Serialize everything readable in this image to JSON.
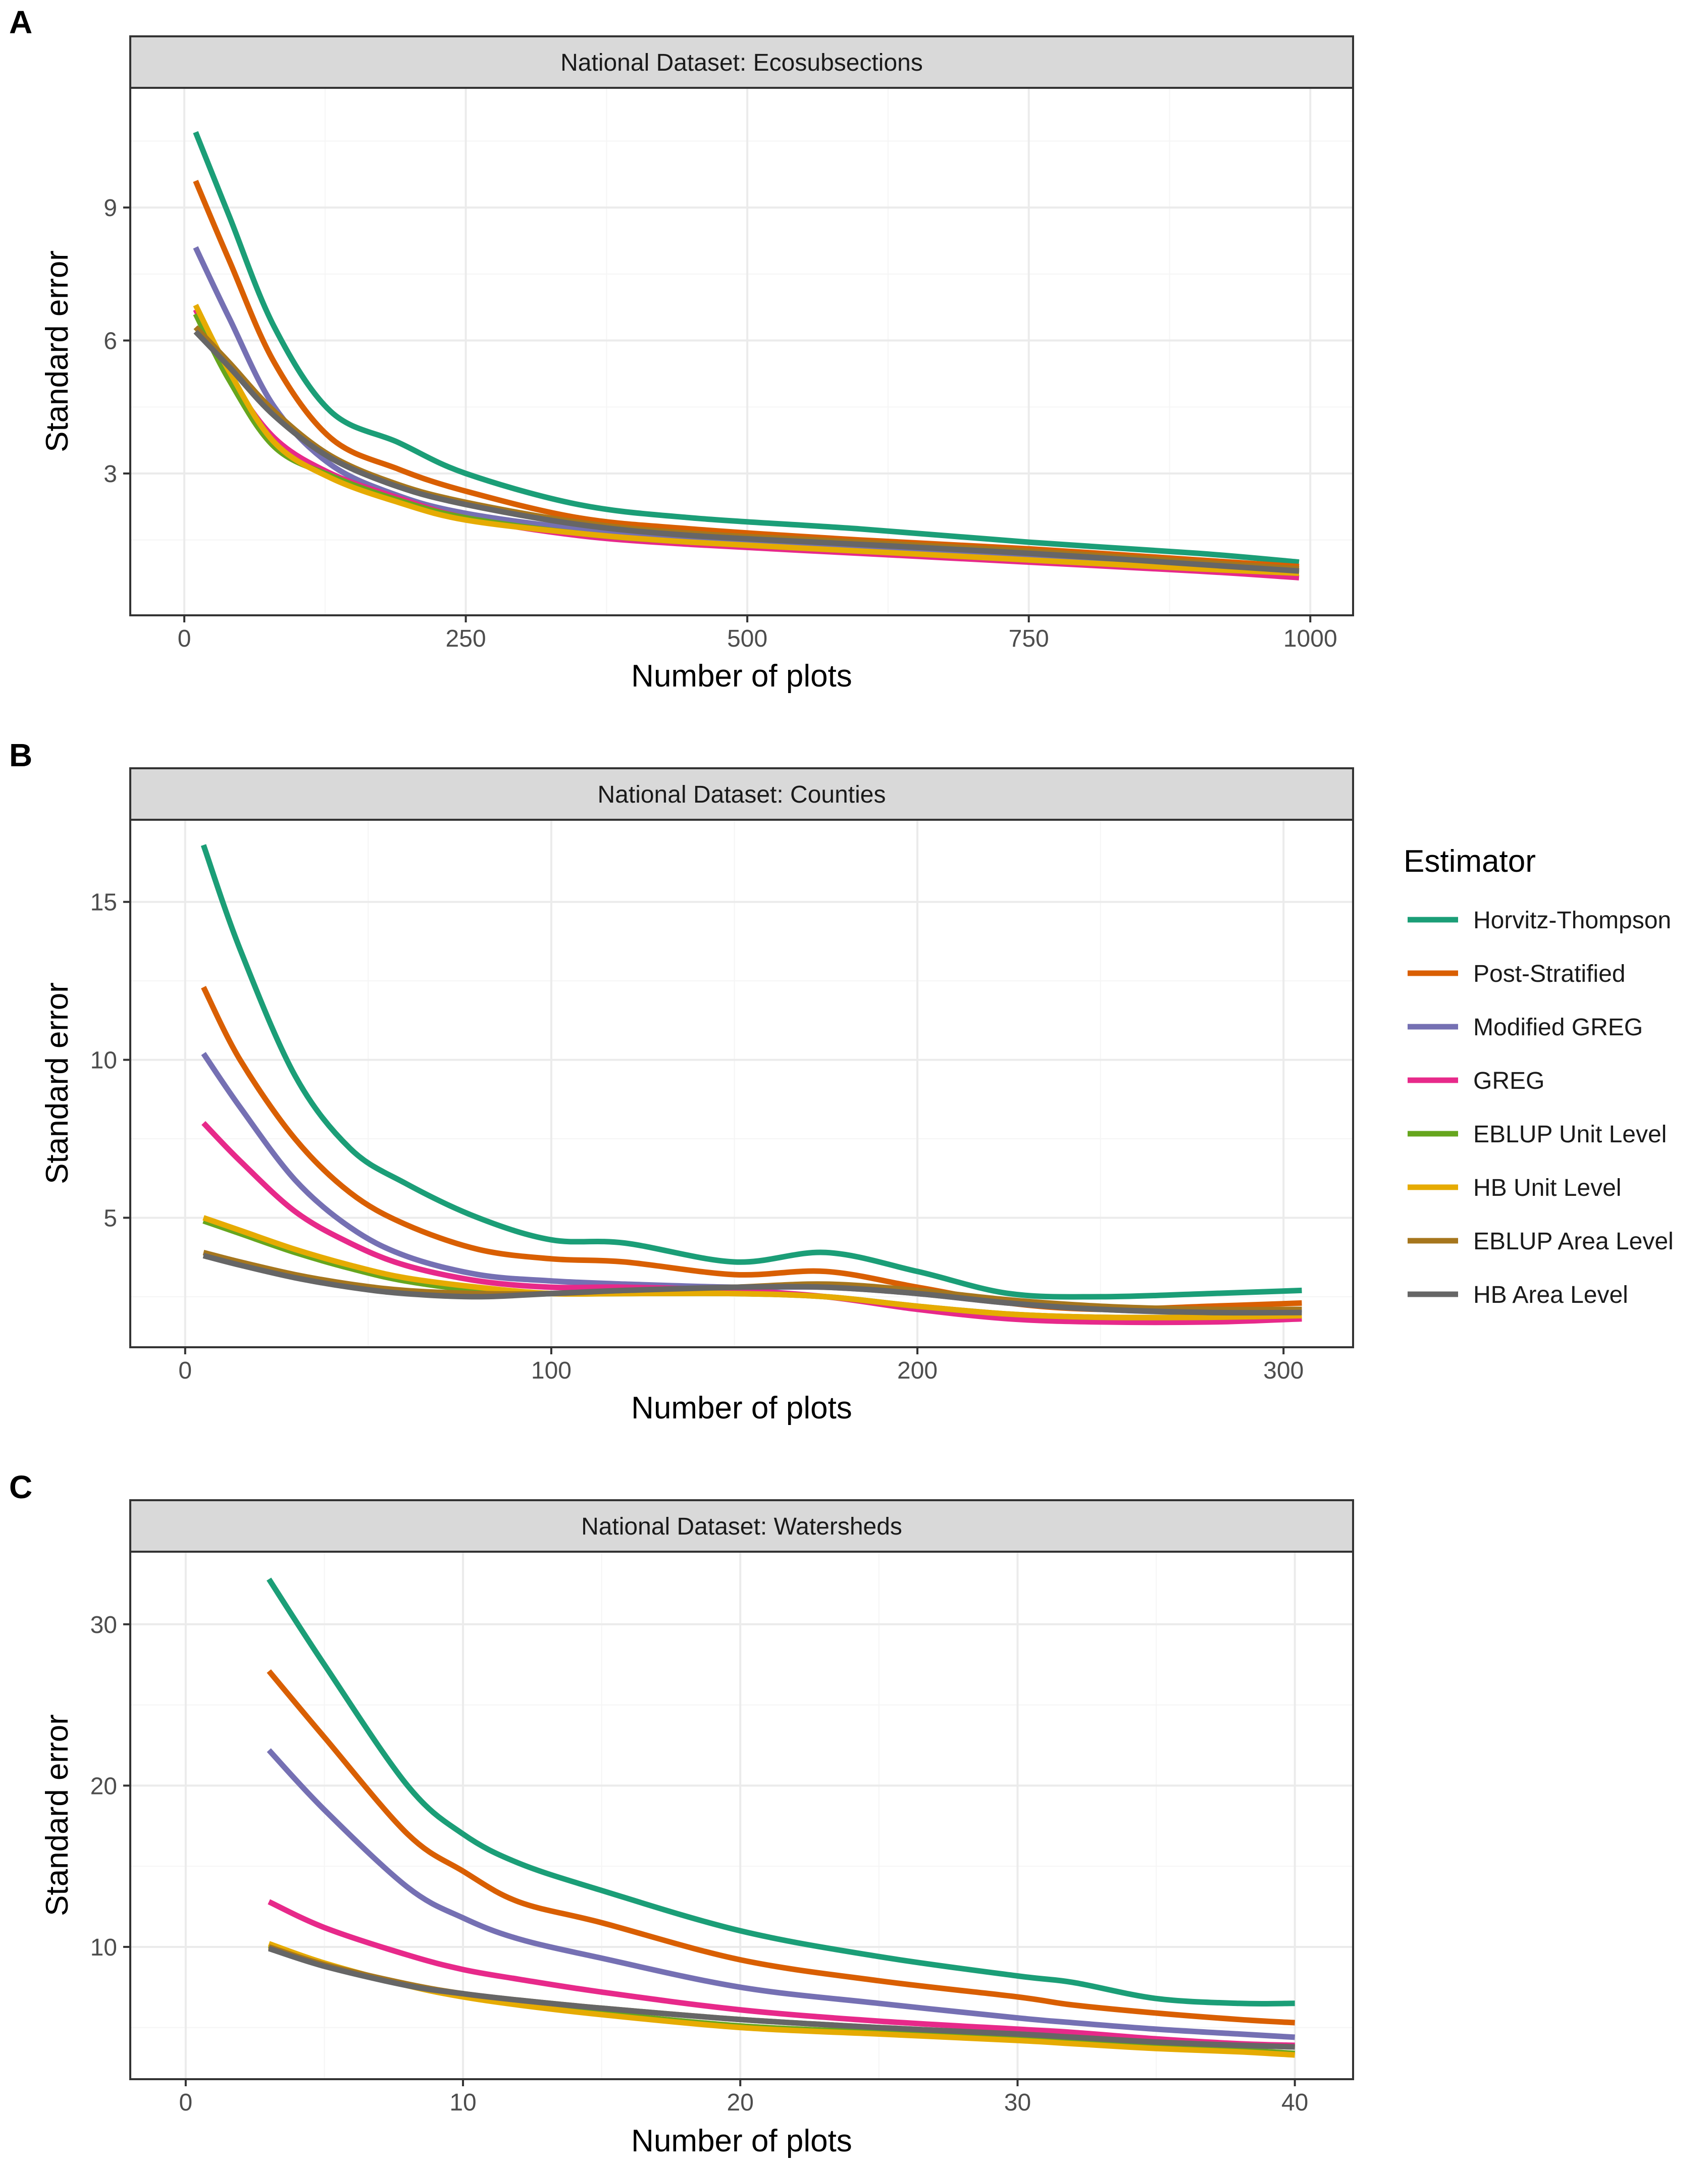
{
  "chart_data": [
    {
      "type": "line",
      "panel": "A",
      "title": "National Dataset: Ecosubsections",
      "xlabel": "Number of plots",
      "ylabel": "Standard error",
      "xlim": [
        -48,
        1038
      ],
      "ylim": [
        -0.2,
        11.7
      ],
      "xticks": [
        0,
        250,
        500,
        750,
        1000
      ],
      "yticks": [
        3,
        6,
        9
      ],
      "xminor": [
        125,
        375,
        625,
        875
      ],
      "yminor": [
        1.5,
        4.5,
        7.5,
        10.5
      ],
      "grid": true,
      "series": [
        {
          "name": "Horvitz-Thompson",
          "x": [
            10,
            40,
            80,
            130,
            190,
            250,
            350,
            450,
            600,
            750,
            900,
            990
          ],
          "values": [
            10.7,
            8.8,
            6.3,
            4.4,
            3.7,
            3.0,
            2.3,
            2.0,
            1.75,
            1.45,
            1.2,
            1.0
          ]
        },
        {
          "name": "Post-Stratified",
          "x": [
            10,
            40,
            80,
            130,
            190,
            250,
            350,
            450,
            600,
            750,
            900,
            990
          ],
          "values": [
            9.6,
            7.8,
            5.5,
            3.8,
            3.1,
            2.6,
            2.0,
            1.75,
            1.5,
            1.3,
            1.05,
            0.9
          ]
        },
        {
          "name": "Modified GREG",
          "x": [
            10,
            40,
            80,
            130,
            190,
            250,
            350,
            450,
            600,
            750,
            900,
            990
          ],
          "values": [
            8.1,
            6.5,
            4.5,
            3.2,
            2.5,
            2.1,
            1.75,
            1.55,
            1.35,
            1.15,
            0.95,
            0.8
          ]
        },
        {
          "name": "GREG",
          "x": [
            10,
            40,
            80,
            130,
            190,
            250,
            350,
            450,
            600,
            750,
            900,
            990
          ],
          "values": [
            6.7,
            5.2,
            3.8,
            3.0,
            2.45,
            2.0,
            1.6,
            1.4,
            1.2,
            1.0,
            0.8,
            0.65
          ]
        },
        {
          "name": "EBLUP Unit Level",
          "x": [
            10,
            40,
            80,
            130,
            190,
            250,
            350,
            450,
            600,
            750,
            900,
            990
          ],
          "values": [
            6.6,
            5.1,
            3.6,
            2.95,
            2.4,
            2.0,
            1.65,
            1.45,
            1.25,
            1.05,
            0.85,
            0.75
          ]
        },
        {
          "name": "HB Unit Level",
          "x": [
            10,
            40,
            80,
            130,
            190,
            250,
            350,
            450,
            600,
            750,
            900,
            990
          ],
          "values": [
            6.8,
            5.3,
            3.7,
            2.9,
            2.35,
            1.95,
            1.65,
            1.45,
            1.25,
            1.05,
            0.85,
            0.75
          ]
        },
        {
          "name": "EBLUP Area Level",
          "x": [
            10,
            40,
            80,
            130,
            190,
            250,
            350,
            450,
            600,
            750,
            900,
            990
          ],
          "values": [
            6.3,
            5.5,
            4.4,
            3.4,
            2.75,
            2.35,
            1.9,
            1.65,
            1.45,
            1.25,
            1.0,
            0.85
          ]
        },
        {
          "name": "HB Area Level",
          "x": [
            10,
            40,
            80,
            130,
            190,
            250,
            350,
            450,
            600,
            750,
            900,
            990
          ],
          "values": [
            6.2,
            5.4,
            4.3,
            3.35,
            2.7,
            2.3,
            1.85,
            1.6,
            1.4,
            1.2,
            0.95,
            0.8
          ]
        }
      ]
    },
    {
      "type": "line",
      "panel": "B",
      "title": "National Dataset: Counties",
      "xlabel": "Number of plots",
      "ylabel": "Standard error",
      "xlim": [
        -15,
        319
      ],
      "ylim": [
        0.9,
        17.6
      ],
      "xticks": [
        0,
        100,
        200,
        300
      ],
      "yticks": [
        5,
        10,
        15
      ],
      "xminor": [
        50,
        150,
        250
      ],
      "yminor": [
        2.5,
        7.5,
        12.5
      ],
      "grid": true,
      "series": [
        {
          "name": "Horvitz-Thompson",
          "x": [
            5,
            15,
            30,
            45,
            60,
            80,
            100,
            120,
            150,
            175,
            200,
            225,
            250,
            280,
            305
          ],
          "values": [
            16.8,
            13.5,
            9.5,
            7.2,
            6.1,
            5.0,
            4.3,
            4.2,
            3.6,
            3.9,
            3.3,
            2.6,
            2.5,
            2.6,
            2.7
          ]
        },
        {
          "name": "Post-Stratified",
          "x": [
            5,
            15,
            30,
            45,
            60,
            80,
            100,
            120,
            150,
            175,
            200,
            225,
            250,
            280,
            305
          ],
          "values": [
            12.3,
            10.0,
            7.5,
            5.8,
            4.8,
            4.0,
            3.7,
            3.6,
            3.2,
            3.3,
            2.8,
            2.3,
            2.1,
            2.2,
            2.3
          ]
        },
        {
          "name": "Modified GREG",
          "x": [
            5,
            15,
            30,
            45,
            60,
            80,
            100,
            120,
            150,
            175,
            200,
            225,
            250,
            280,
            305
          ],
          "values": [
            10.2,
            8.5,
            6.2,
            4.7,
            3.8,
            3.2,
            3.0,
            2.9,
            2.8,
            2.8,
            2.6,
            2.3,
            2.1,
            2.0,
            2.1
          ]
        },
        {
          "name": "GREG",
          "x": [
            5,
            15,
            30,
            45,
            60,
            80,
            100,
            120,
            150,
            175,
            200,
            225,
            250,
            280,
            305
          ],
          "values": [
            8.0,
            6.8,
            5.2,
            4.2,
            3.5,
            3.0,
            2.8,
            2.8,
            2.7,
            2.5,
            2.1,
            1.8,
            1.7,
            1.7,
            1.8
          ]
        },
        {
          "name": "EBLUP Unit Level",
          "x": [
            5,
            15,
            30,
            45,
            60,
            80,
            100,
            120,
            150,
            175,
            200,
            225,
            250,
            280,
            305
          ],
          "values": [
            4.9,
            4.5,
            3.9,
            3.4,
            3.0,
            2.7,
            2.6,
            2.6,
            2.6,
            2.5,
            2.2,
            1.95,
            1.85,
            1.85,
            1.9
          ]
        },
        {
          "name": "HB Unit Level",
          "x": [
            5,
            15,
            30,
            45,
            60,
            80,
            100,
            120,
            150,
            175,
            200,
            225,
            250,
            280,
            305
          ],
          "values": [
            5.0,
            4.6,
            4.0,
            3.5,
            3.1,
            2.8,
            2.6,
            2.6,
            2.6,
            2.5,
            2.2,
            1.95,
            1.85,
            1.85,
            1.9
          ]
        },
        {
          "name": "EBLUP Area Level",
          "x": [
            5,
            15,
            30,
            45,
            60,
            80,
            100,
            120,
            150,
            175,
            200,
            225,
            250,
            280,
            305
          ],
          "values": [
            3.9,
            3.6,
            3.2,
            2.9,
            2.7,
            2.6,
            2.6,
            2.7,
            2.8,
            2.9,
            2.7,
            2.4,
            2.2,
            2.1,
            2.1
          ]
        },
        {
          "name": "HB Area Level",
          "x": [
            5,
            15,
            30,
            45,
            60,
            80,
            100,
            120,
            150,
            175,
            200,
            225,
            250,
            280,
            305
          ],
          "values": [
            3.8,
            3.5,
            3.1,
            2.8,
            2.6,
            2.5,
            2.6,
            2.7,
            2.8,
            2.8,
            2.6,
            2.3,
            2.1,
            2.0,
            2.0
          ]
        }
      ]
    },
    {
      "type": "line",
      "panel": "C",
      "title": "National Dataset: Watersheds",
      "xlabel": "Number of plots",
      "ylabel": "Standard error",
      "xlim": [
        -2,
        42.1
      ],
      "ylim": [
        1.8,
        34.5
      ],
      "xticks": [
        0,
        10,
        20,
        30,
        40
      ],
      "yticks": [
        10,
        20,
        30
      ],
      "xminor": [
        5,
        15,
        25,
        35
      ],
      "yminor": [
        5,
        15,
        25
      ],
      "grid": true,
      "series": [
        {
          "name": "Horvitz-Thompson",
          "x": [
            3,
            5,
            8,
            10,
            12,
            15,
            20,
            25,
            30,
            32,
            35,
            38,
            40
          ],
          "values": [
            32.8,
            27.5,
            20.0,
            17.0,
            15.2,
            13.5,
            11.0,
            9.4,
            8.2,
            7.8,
            6.8,
            6.5,
            6.5
          ]
        },
        {
          "name": "Post-Stratified",
          "x": [
            3,
            5,
            8,
            10,
            12,
            15,
            20,
            25,
            30,
            32,
            35,
            38,
            40
          ],
          "values": [
            27.1,
            23.0,
            17.0,
            14.7,
            12.8,
            11.5,
            9.2,
            7.9,
            6.9,
            6.4,
            5.9,
            5.5,
            5.3
          ]
        },
        {
          "name": "Modified GREG",
          "x": [
            3,
            5,
            8,
            10,
            12,
            15,
            20,
            25,
            30,
            32,
            35,
            38,
            40
          ],
          "values": [
            22.2,
            18.5,
            13.7,
            11.8,
            10.5,
            9.3,
            7.5,
            6.5,
            5.6,
            5.3,
            4.9,
            4.6,
            4.4
          ]
        },
        {
          "name": "GREG",
          "x": [
            3,
            5,
            8,
            10,
            12,
            15,
            20,
            25,
            30,
            32,
            35,
            38,
            40
          ],
          "values": [
            12.8,
            11.2,
            9.5,
            8.6,
            8.0,
            7.2,
            6.1,
            5.4,
            4.9,
            4.7,
            4.3,
            4.0,
            3.9
          ]
        },
        {
          "name": "EBLUP Unit Level",
          "x": [
            3,
            5,
            8,
            10,
            12,
            15,
            20,
            25,
            30,
            32,
            35,
            38,
            40
          ],
          "values": [
            10.1,
            8.9,
            7.6,
            7.0,
            6.5,
            5.9,
            5.1,
            4.7,
            4.3,
            4.1,
            3.8,
            3.6,
            3.4
          ]
        },
        {
          "name": "HB Unit Level",
          "x": [
            3,
            5,
            8,
            10,
            12,
            15,
            20,
            25,
            30,
            32,
            35,
            38,
            40
          ],
          "values": [
            10.2,
            9.0,
            7.6,
            6.9,
            6.4,
            5.8,
            5.0,
            4.6,
            4.2,
            4.0,
            3.7,
            3.5,
            3.3
          ]
        },
        {
          "name": "EBLUP Area Level",
          "x": [
            3,
            5,
            8,
            10,
            12,
            15,
            20,
            25,
            30,
            32,
            35,
            38,
            40
          ],
          "values": [
            10.0,
            8.9,
            7.7,
            7.1,
            6.7,
            6.2,
            5.5,
            5.0,
            4.6,
            4.4,
            4.1,
            3.9,
            3.8
          ]
        },
        {
          "name": "HB Area Level",
          "x": [
            3,
            5,
            8,
            10,
            12,
            15,
            20,
            25,
            30,
            32,
            35,
            38,
            40
          ],
          "values": [
            9.9,
            8.8,
            7.6,
            7.1,
            6.7,
            6.2,
            5.5,
            5.0,
            4.6,
            4.4,
            4.1,
            3.9,
            3.8
          ]
        }
      ]
    }
  ],
  "legend": {
    "title": "Estimator",
    "position": "right",
    "items": [
      {
        "name": "Horvitz-Thompson",
        "color": "#1b9e77"
      },
      {
        "name": "Post-Stratified",
        "color": "#d95f02"
      },
      {
        "name": "Modified GREG",
        "color": "#7570b3"
      },
      {
        "name": "GREG",
        "color": "#e7298a"
      },
      {
        "name": "EBLUP Unit Level",
        "color": "#66a61e"
      },
      {
        "name": "HB Unit Level",
        "color": "#e6ab02"
      },
      {
        "name": "EBLUP Area Level",
        "color": "#a6761d"
      },
      {
        "name": "HB Area Level",
        "color": "#666666"
      }
    ]
  },
  "colors": {
    "strip_background": "#d9d9d9",
    "grid_major": "#ebebeb",
    "grid_minor": "#f5f5f5",
    "panel_border": "#333333"
  }
}
